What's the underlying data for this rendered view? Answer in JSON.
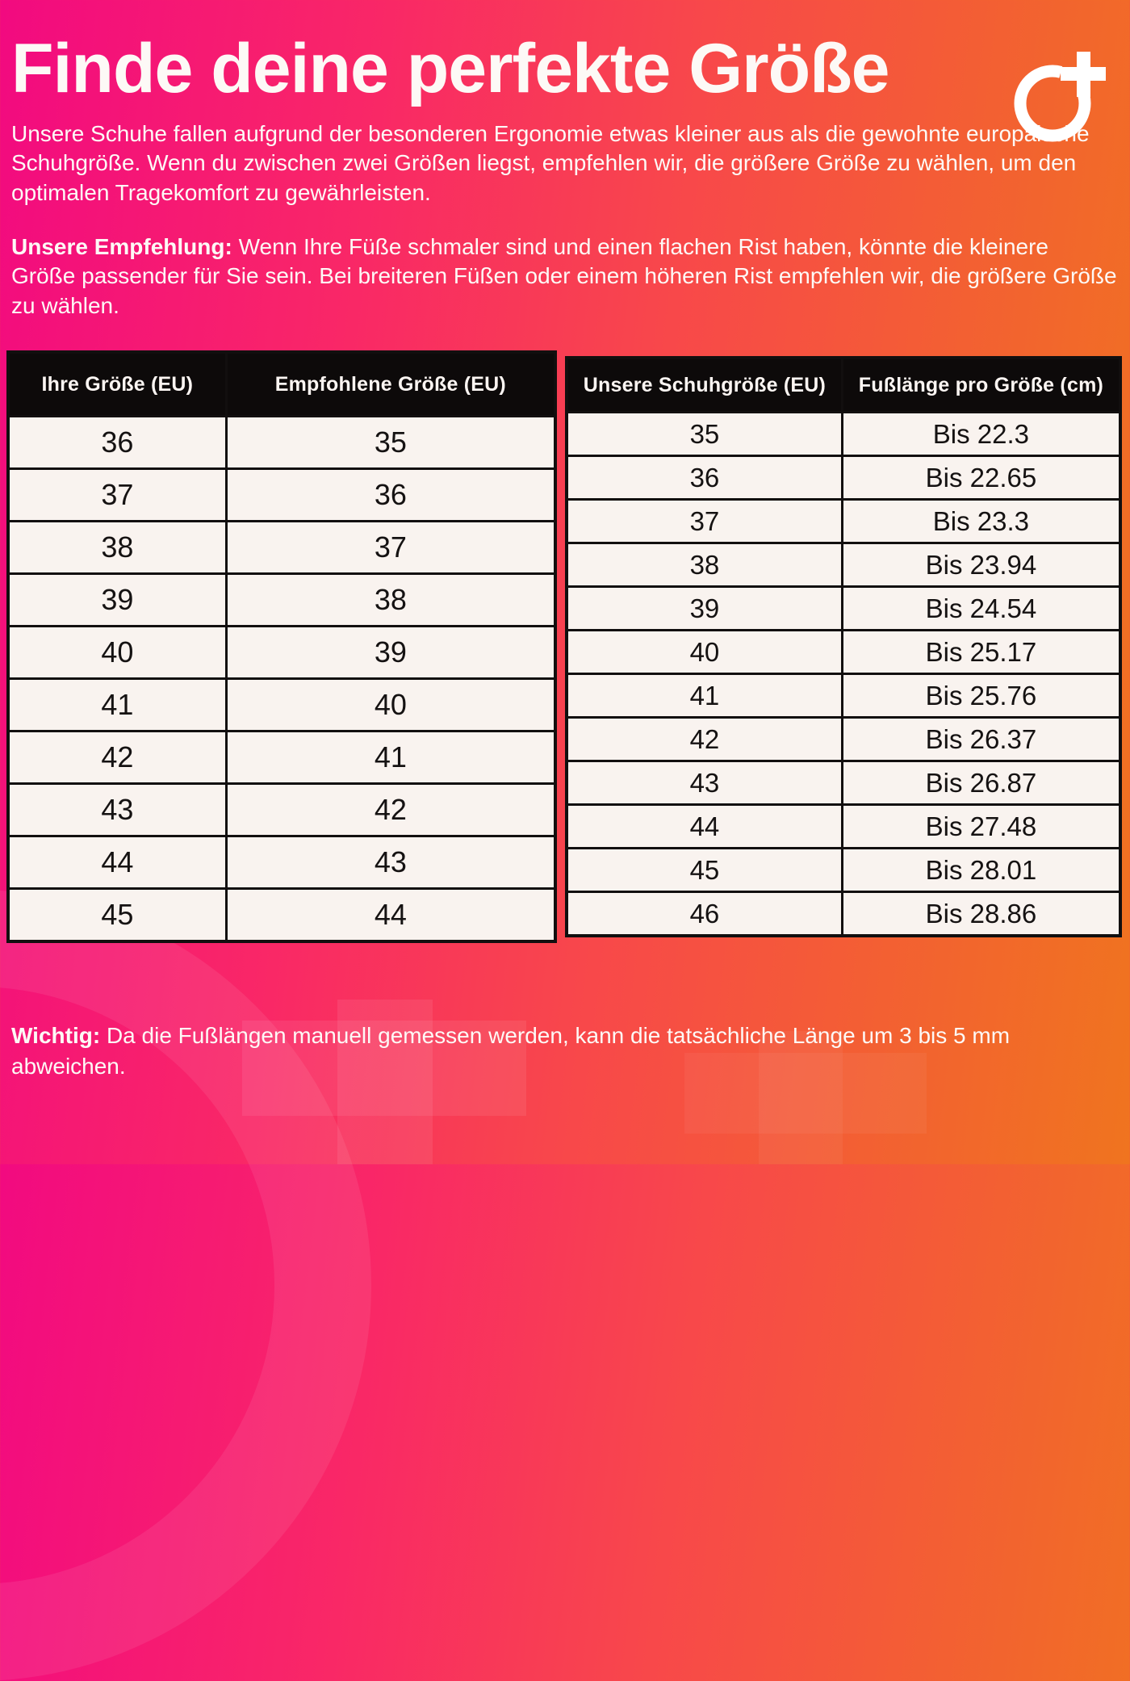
{
  "page": {
    "title": "Finde deine perfekte Größe",
    "intro": "Unsere Schuhe fallen aufgrund der besonderen Ergonomie etwas kleiner aus als die gewohnte europäische Schuhgröße. Wenn du zwischen zwei Größen liegst, empfehlen wir, die größere Größe zu wählen, um den optimalen Tragekomfort zu gewährleisten.",
    "recommendation_label": "Unsere Empfehlung:",
    "recommendation_text": " Wenn Ihre Füße schmaler sind und einen flachen Rist haben, könnte die kleinere Größe passender für Sie sein. Bei breiteren Füßen oder einem höheren Rist empfehlen wir, die größere Größe zu wählen.",
    "note_label": "Wichtig:",
    "note_text": " Da die Fußlängen manuell gemessen werden, kann die tatsächliche Länge um 3 bis 5 mm abweichen."
  },
  "colors": {
    "gradient_left_pink": "#f20a80",
    "gradient_right_orange": "#f0741f",
    "table_header_bg": "#0d0a0a",
    "table_cell_bg": "#f9f3ef",
    "table_border": "#120f0f",
    "text_light": "#fdf9f6",
    "text_dark": "#151212"
  },
  "size_table": {
    "headers": [
      "Ihre Größe (EU)",
      "Empfohlene Größe (EU)"
    ],
    "rows": [
      [
        "36",
        "35"
      ],
      [
        "37",
        "36"
      ],
      [
        "38",
        "37"
      ],
      [
        "39",
        "38"
      ],
      [
        "40",
        "39"
      ],
      [
        "41",
        "40"
      ],
      [
        "42",
        "41"
      ],
      [
        "43",
        "42"
      ],
      [
        "44",
        "43"
      ],
      [
        "45",
        "44"
      ]
    ]
  },
  "length_table": {
    "headers": [
      "Unsere Schuhgröße (EU)",
      "Fußlänge pro Größe (cm)"
    ],
    "rows": [
      [
        "35",
        "Bis 22.3"
      ],
      [
        "36",
        "Bis 22.65"
      ],
      [
        "37",
        "Bis 23.3"
      ],
      [
        "38",
        "Bis 23.94"
      ],
      [
        "39",
        "Bis 24.54"
      ],
      [
        "40",
        "Bis 25.17"
      ],
      [
        "41",
        "Bis 25.76"
      ],
      [
        "42",
        "Bis 26.37"
      ],
      [
        "43",
        "Bis 26.87"
      ],
      [
        "44",
        "Bis 27.48"
      ],
      [
        "45",
        "Bis 28.01"
      ],
      [
        "46",
        "Bis 28.86"
      ]
    ]
  }
}
